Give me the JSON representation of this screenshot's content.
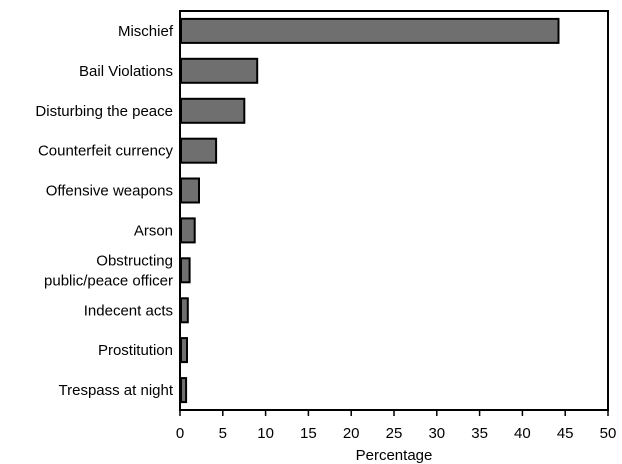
{
  "chart_data": {
    "type": "bar",
    "orientation": "horizontal",
    "categories": [
      "Mischief",
      "Bail Violations",
      "Disturbing the peace",
      "Counterfeit currency",
      "Offensive weapons",
      "Arson",
      "Obstructing public/peace officer",
      "Indecent acts",
      "Prostitution",
      "Trespass at night"
    ],
    "category_lines": [
      [
        "Mischief"
      ],
      [
        "Bail Violations"
      ],
      [
        "Disturbing the peace"
      ],
      [
        "Counterfeit currency"
      ],
      [
        "Offensive weapons"
      ],
      [
        "Arson"
      ],
      [
        "Obstructing",
        "public/peace officer"
      ],
      [
        "Indecent acts"
      ],
      [
        "Prostitution"
      ],
      [
        "Trespass at night"
      ]
    ],
    "values": [
      44.1,
      8.9,
      7.4,
      4.1,
      2.1,
      1.6,
      1.0,
      0.8,
      0.7,
      0.6
    ],
    "xlabel": "Percentage",
    "ylabel": "",
    "title": "",
    "xlim": [
      0,
      50
    ],
    "xticks": [
      0,
      5,
      10,
      15,
      20,
      25,
      30,
      35,
      40,
      45,
      50
    ],
    "grid": false,
    "legend": "none",
    "bar_color": "#6f6f6f",
    "bar_edge_color": "#000000"
  }
}
